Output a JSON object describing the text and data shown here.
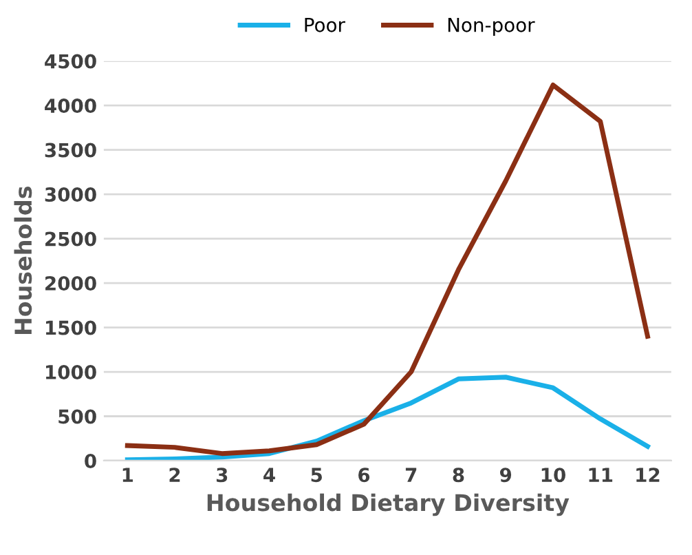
{
  "chart_data": {
    "type": "line",
    "xlabel": "Household Dietary Diversity",
    "ylabel": "Households",
    "categories": [
      "1",
      "2",
      "3",
      "4",
      "5",
      "6",
      "7",
      "8",
      "9",
      "10",
      "11",
      "12"
    ],
    "series": [
      {
        "name": "Poor",
        "color": "#1ab0e8",
        "values": [
          10,
          20,
          40,
          80,
          220,
          450,
          650,
          920,
          940,
          820,
          470,
          160
        ]
      },
      {
        "name": "Non-poor",
        "color": "#8b2f14",
        "values": [
          170,
          150,
          80,
          110,
          180,
          410,
          1000,
          2150,
          3150,
          4230,
          3820,
          1400
        ]
      }
    ],
    "ylim": [
      0,
      4500
    ],
    "yticks": [
      0,
      500,
      1000,
      1500,
      2000,
      2500,
      3000,
      3500,
      4000,
      4500
    ],
    "grid": "y",
    "legend": "top",
    "marker": "none",
    "line_style": "solid"
  }
}
